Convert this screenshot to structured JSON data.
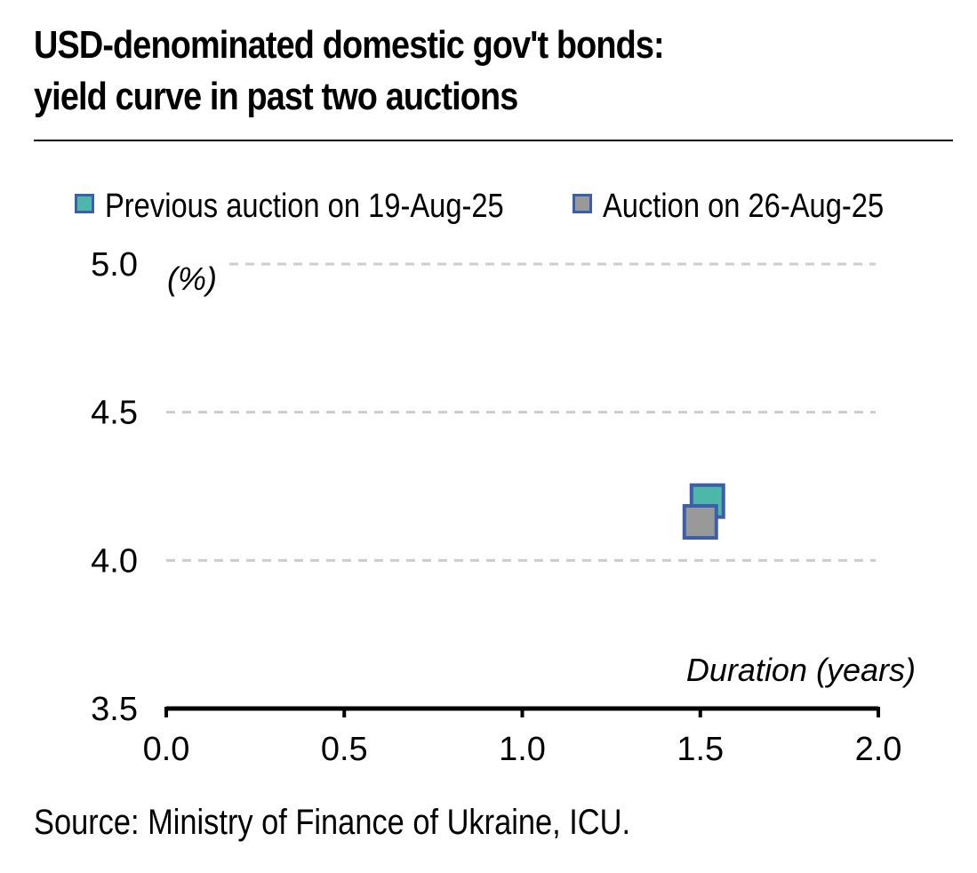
{
  "title_line1": "USD-denominated domestic gov't bonds:",
  "title_line2": "yield curve in past two auctions",
  "source": "Source: Ministry of Finance of Ukraine, ICU.",
  "chart_data": {
    "type": "scatter",
    "title": "USD-denominated domestic gov't bonds: yield curve in past two auctions",
    "xlabel": "Duration (years)",
    "ylabel": "(%)",
    "xlim": [
      0.0,
      2.0
    ],
    "ylim": [
      3.5,
      5.0
    ],
    "x_ticks": [
      "0.0",
      "0.5",
      "1.0",
      "1.5",
      "2.0"
    ],
    "y_ticks": [
      "3.5",
      "4.0",
      "4.5",
      "5.0"
    ],
    "y_grid": true,
    "legend_position": "top",
    "series": [
      {
        "name": "Previous auction on 19-Aug-25",
        "color": "#4db8aa",
        "edge_color": "#3d5ea8",
        "marker": "square",
        "points": [
          {
            "x": 1.52,
            "y": 4.2
          }
        ]
      },
      {
        "name": "Auction on 26-Aug-25",
        "color": "#999999",
        "edge_color": "#3d5ea8",
        "marker": "square",
        "points": [
          {
            "x": 1.5,
            "y": 4.13
          }
        ]
      }
    ]
  }
}
